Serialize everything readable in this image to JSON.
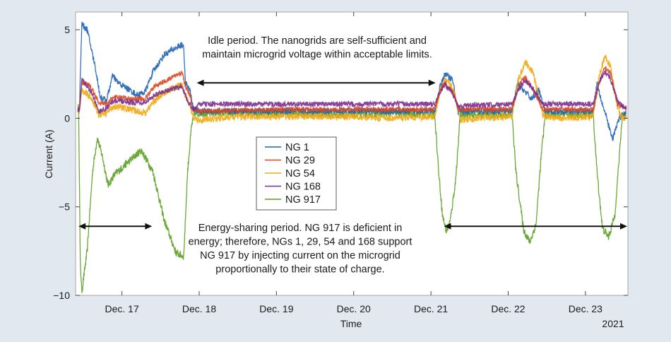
{
  "chart_data": {
    "type": "line",
    "title": "",
    "xlabel": "Time",
    "ylabel": "Current (A)",
    "year_label": "2021",
    "xlim": [
      16.4,
      23.55
    ],
    "ylim": [
      -10,
      6
    ],
    "x_units": "day of December 2021",
    "x_ticks": [
      {
        "value": 17,
        "label": "Dec. 17"
      },
      {
        "value": 18,
        "label": "Dec. 18"
      },
      {
        "value": 19,
        "label": "Dec. 19"
      },
      {
        "value": 20,
        "label": "Dec. 20"
      },
      {
        "value": 21,
        "label": "Dec. 21"
      },
      {
        "value": 22,
        "label": "Dec. 22"
      },
      {
        "value": 23,
        "label": "Dec. 23"
      }
    ],
    "y_ticks": [
      {
        "value": 5,
        "label": "5"
      },
      {
        "value": 0,
        "label": "0"
      },
      {
        "value": -5,
        "label": "−5"
      },
      {
        "value": -10,
        "label": "−10"
      }
    ],
    "grid": false,
    "legend": {
      "position": "center-left",
      "entries": [
        "NG 1",
        "NG 29",
        "NG 54",
        "NG 168",
        "NG 917"
      ]
    },
    "series": [
      {
        "name": "NG 1",
        "color": "#1f63b5",
        "noise": 0.18,
        "points": [
          [
            16.4,
            0.5
          ],
          [
            16.45,
            0.5
          ],
          [
            16.48,
            5.3
          ],
          [
            16.55,
            5.0
          ],
          [
            16.65,
            3.0
          ],
          [
            16.72,
            1.2
          ],
          [
            16.8,
            1.0
          ],
          [
            16.88,
            2.4
          ],
          [
            16.95,
            2.0
          ],
          [
            17.1,
            1.6
          ],
          [
            17.2,
            1.3
          ],
          [
            17.3,
            1.5
          ],
          [
            17.4,
            2.6
          ],
          [
            17.55,
            3.6
          ],
          [
            17.75,
            4.1
          ],
          [
            17.8,
            4.1
          ],
          [
            17.82,
            2.0
          ],
          [
            17.88,
            1.6
          ],
          [
            17.92,
            0.6
          ],
          [
            18.0,
            0.4
          ],
          [
            19.0,
            0.4
          ],
          [
            20.0,
            0.4
          ],
          [
            20.8,
            0.4
          ],
          [
            21.05,
            0.4
          ],
          [
            21.12,
            1.8
          ],
          [
            21.18,
            2.5
          ],
          [
            21.28,
            2.2
          ],
          [
            21.35,
            0.4
          ],
          [
            22.0,
            0.4
          ],
          [
            22.05,
            0.4
          ],
          [
            22.12,
            1.9
          ],
          [
            22.2,
            1.6
          ],
          [
            22.3,
            1.1
          ],
          [
            22.4,
            1.6
          ],
          [
            22.47,
            0.4
          ],
          [
            23.0,
            0.4
          ],
          [
            23.1,
            0.4
          ],
          [
            23.15,
            2.0
          ],
          [
            23.22,
            0.8
          ],
          [
            23.3,
            -0.4
          ],
          [
            23.35,
            -1.2
          ],
          [
            23.42,
            -0.2
          ],
          [
            23.47,
            0.2
          ],
          [
            23.52,
            0.3
          ]
        ]
      },
      {
        "name": "NG 29",
        "color": "#d9461f",
        "noise": 0.14,
        "points": [
          [
            16.4,
            0.5
          ],
          [
            16.45,
            0.5
          ],
          [
            16.48,
            2.0
          ],
          [
            16.58,
            1.9
          ],
          [
            16.7,
            0.9
          ],
          [
            16.8,
            0.8
          ],
          [
            16.9,
            1.2
          ],
          [
            17.1,
            1.1
          ],
          [
            17.3,
            1.1
          ],
          [
            17.42,
            1.8
          ],
          [
            17.6,
            2.2
          ],
          [
            17.78,
            2.6
          ],
          [
            17.82,
            1.8
          ],
          [
            17.88,
            1.3
          ],
          [
            17.92,
            0.5
          ],
          [
            18.0,
            0.4
          ],
          [
            19.0,
            0.5
          ],
          [
            20.0,
            0.5
          ],
          [
            21.05,
            0.5
          ],
          [
            21.12,
            1.6
          ],
          [
            21.18,
            2.0
          ],
          [
            21.3,
            1.4
          ],
          [
            21.35,
            0.5
          ],
          [
            22.05,
            0.5
          ],
          [
            22.15,
            2.0
          ],
          [
            22.22,
            2.3
          ],
          [
            22.35,
            1.4
          ],
          [
            22.45,
            0.5
          ],
          [
            23.1,
            0.5
          ],
          [
            23.18,
            2.0
          ],
          [
            23.25,
            2.9
          ],
          [
            23.32,
            2.6
          ],
          [
            23.42,
            0.7
          ],
          [
            23.52,
            0.6
          ]
        ]
      },
      {
        "name": "NG 54",
        "color": "#efaa14",
        "noise": 0.2,
        "points": [
          [
            16.4,
            0.4
          ],
          [
            16.45,
            0.4
          ],
          [
            16.48,
            1.6
          ],
          [
            16.6,
            1.2
          ],
          [
            16.7,
            0.2
          ],
          [
            16.8,
            0.3
          ],
          [
            16.9,
            0.7
          ],
          [
            17.1,
            0.5
          ],
          [
            17.3,
            0.3
          ],
          [
            17.42,
            1.0
          ],
          [
            17.6,
            1.6
          ],
          [
            17.78,
            1.9
          ],
          [
            17.82,
            1.3
          ],
          [
            17.88,
            0.8
          ],
          [
            17.92,
            0.0
          ],
          [
            18.0,
            -0.1
          ],
          [
            18.5,
            0.1
          ],
          [
            19.0,
            0.1
          ],
          [
            20.0,
            0.1
          ],
          [
            20.5,
            0.0
          ],
          [
            21.05,
            0.1
          ],
          [
            21.12,
            1.6
          ],
          [
            21.2,
            2.2
          ],
          [
            21.3,
            1.5
          ],
          [
            21.38,
            -0.1
          ],
          [
            21.6,
            0.0
          ],
          [
            22.05,
            0.1
          ],
          [
            22.12,
            2.0
          ],
          [
            22.22,
            3.2
          ],
          [
            22.32,
            2.6
          ],
          [
            22.45,
            0.2
          ],
          [
            22.6,
            0.0
          ],
          [
            23.1,
            0.1
          ],
          [
            23.18,
            2.4
          ],
          [
            23.25,
            3.5
          ],
          [
            23.32,
            3.0
          ],
          [
            23.42,
            0.5
          ],
          [
            23.5,
            -0.1
          ],
          [
            23.52,
            0.1
          ]
        ]
      },
      {
        "name": "NG 168",
        "color": "#7b2d8e",
        "noise": 0.15,
        "points": [
          [
            16.4,
            0.5
          ],
          [
            16.45,
            0.5
          ],
          [
            16.48,
            2.2
          ],
          [
            16.6,
            1.5
          ],
          [
            16.7,
            0.4
          ],
          [
            16.8,
            0.6
          ],
          [
            16.9,
            1.0
          ],
          [
            17.1,
            0.9
          ],
          [
            17.3,
            0.9
          ],
          [
            17.42,
            1.3
          ],
          [
            17.6,
            1.6
          ],
          [
            17.78,
            1.8
          ],
          [
            17.82,
            1.3
          ],
          [
            17.9,
            0.6
          ],
          [
            17.95,
            0.5
          ],
          [
            18.0,
            0.8
          ],
          [
            19.0,
            0.8
          ],
          [
            20.0,
            0.8
          ],
          [
            21.05,
            0.8
          ],
          [
            21.12,
            1.5
          ],
          [
            21.18,
            1.9
          ],
          [
            21.28,
            1.4
          ],
          [
            21.35,
            0.7
          ],
          [
            22.05,
            0.8
          ],
          [
            22.15,
            1.8
          ],
          [
            22.22,
            2.1
          ],
          [
            22.32,
            1.7
          ],
          [
            22.45,
            0.8
          ],
          [
            23.1,
            0.8
          ],
          [
            23.18,
            2.1
          ],
          [
            23.25,
            2.6
          ],
          [
            23.32,
            2.3
          ],
          [
            23.42,
            0.9
          ],
          [
            23.52,
            0.6
          ]
        ]
      },
      {
        "name": "NG 917",
        "color": "#5a9e22",
        "noise": 0.22,
        "points": [
          [
            16.4,
            0.6
          ],
          [
            16.44,
            0.6
          ],
          [
            16.46,
            -8.0
          ],
          [
            16.48,
            -9.8
          ],
          [
            16.55,
            -7.5
          ],
          [
            16.62,
            -3.0
          ],
          [
            16.68,
            -1.1
          ],
          [
            16.75,
            -2.2
          ],
          [
            16.82,
            -3.8
          ],
          [
            16.9,
            -3.2
          ],
          [
            17.1,
            -2.4
          ],
          [
            17.25,
            -1.8
          ],
          [
            17.4,
            -3.0
          ],
          [
            17.55,
            -5.8
          ],
          [
            17.7,
            -7.6
          ],
          [
            17.8,
            -7.8
          ],
          [
            17.85,
            -3.0
          ],
          [
            17.9,
            -0.5
          ],
          [
            17.93,
            0.2
          ],
          [
            18.0,
            0.3
          ],
          [
            19.0,
            0.3
          ],
          [
            20.0,
            0.2
          ],
          [
            20.5,
            0.3
          ],
          [
            21.05,
            0.2
          ],
          [
            21.1,
            -3.0
          ],
          [
            21.15,
            -5.5
          ],
          [
            21.2,
            -6.4
          ],
          [
            21.25,
            -5.8
          ],
          [
            21.32,
            -3.5
          ],
          [
            21.38,
            0.2
          ],
          [
            22.05,
            0.2
          ],
          [
            22.1,
            -3.0
          ],
          [
            22.2,
            -6.3
          ],
          [
            22.28,
            -7.0
          ],
          [
            22.36,
            -6.0
          ],
          [
            22.43,
            -2.0
          ],
          [
            22.48,
            0.2
          ],
          [
            23.1,
            0.2
          ],
          [
            23.15,
            -3.0
          ],
          [
            23.22,
            -6.2
          ],
          [
            23.3,
            -6.7
          ],
          [
            23.38,
            -5.5
          ],
          [
            23.45,
            -1.5
          ],
          [
            23.48,
            0.3
          ],
          [
            23.52,
            0.1
          ]
        ]
      }
    ],
    "annotations": [
      {
        "id": "idle",
        "lines": [
          "Idle period. The nanogrids are self-sufficient and",
          "maintain microgrid voltage within acceptable limits."
        ],
        "arrow": {
          "x0": 17.95,
          "x1": 21.07,
          "y": 2.0,
          "two_headed": true
        }
      },
      {
        "id": "sharing",
        "lines": [
          "Energy-sharing period. NG 917 is deficient in",
          "energy; therefore, NGs 1, 29, 54 and 168 support",
          "NG 917 by injecting current on the microgrid",
          "proportionally to their state of charge."
        ],
        "arrows": [
          {
            "x0": 16.42,
            "x1": 17.4,
            "y": -6.1,
            "two_headed": true
          },
          {
            "x0": 21.15,
            "x1": 23.55,
            "y": -6.1,
            "two_headed": true
          }
        ]
      }
    ]
  }
}
